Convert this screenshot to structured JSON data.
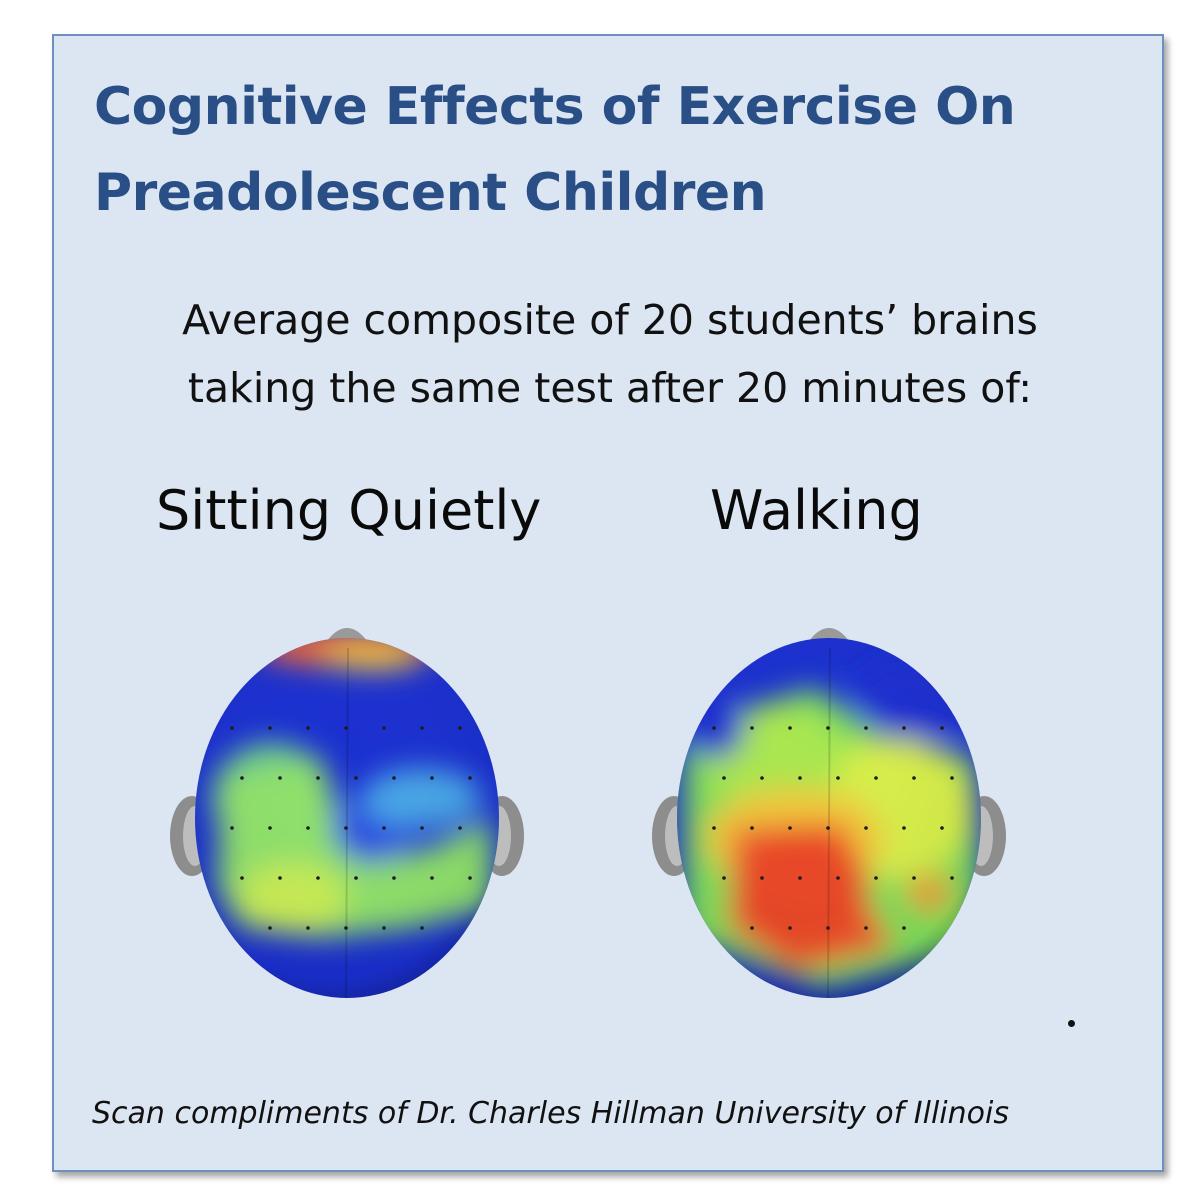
{
  "title": {
    "line1": "Cognitive Effects of Exercise On",
    "line2": "Preadolescent Children"
  },
  "subtitle": {
    "line1": "Average composite of 20 students’ brains",
    "line2": "taking the same test after 20 minutes of:"
  },
  "conditions": [
    {
      "label": "Sitting Quietly",
      "icon": "brain-activity-map-icon"
    },
    {
      "label": "Walking",
      "icon": "brain-activity-map-icon"
    }
  ],
  "credit": "Scan compliments of Dr. Charles Hillman University of Illinois",
  "colors": {
    "background": "#dce6f2",
    "border": "#6f8fc0",
    "title": "#2a4f86",
    "heat_low": "#1a2fd0",
    "heat_mid": "#7fe05a",
    "heat_high": "#e8452a"
  }
}
